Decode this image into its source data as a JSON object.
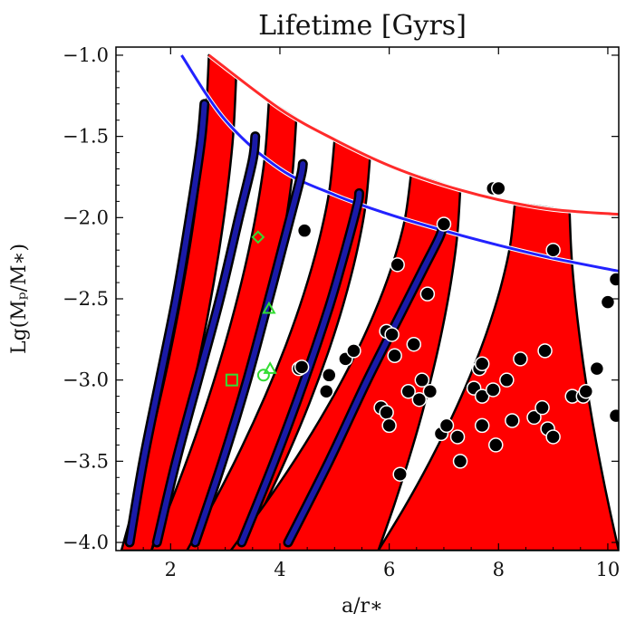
{
  "chart_data": {
    "type": "scatter",
    "title": "Lifetime [Gyrs]",
    "xlabel": "a/r∗",
    "ylabel": "Lg(Mₚ/M∗)",
    "xlim": [
      1.0,
      10.2
    ],
    "ylim": [
      -4.05,
      -0.95
    ],
    "xticks": [
      2,
      4,
      6,
      8,
      10
    ],
    "yticks": [
      -1.0,
      -1.5,
      -2.0,
      -2.5,
      -3.0,
      -3.5,
      -4.0
    ],
    "xtick_labels": [
      "2",
      "4",
      "6",
      "8",
      "10"
    ],
    "ytick_labels": [
      "−1.0",
      "−1.5",
      "−2.0",
      "−2.5",
      "−3.0",
      "−3.5",
      "−4.0"
    ],
    "colors": {
      "band_fill": "#ff0000",
      "band_edge": "#000000",
      "roche_limit": "#ff2a2a",
      "tidal_limit": "#2222ff",
      "track": "#1a1aa8",
      "planet": "#000000",
      "marker": "#33dd33"
    },
    "limit_curves": [
      {
        "name": "upper",
        "color": "#ff2a2a",
        "x": [
          2.7,
          4,
          5,
          6,
          7,
          8,
          9,
          10.2
        ],
        "y": [
          -1.0,
          -1.33,
          -1.52,
          -1.68,
          -1.8,
          -1.89,
          -1.95,
          -1.98
        ]
      },
      {
        "name": "lower",
        "color": "#2222ff",
        "x": [
          2.2,
          3,
          4,
          5,
          6,
          7,
          8,
          9,
          10.2
        ],
        "y": [
          -1.0,
          -1.4,
          -1.7,
          -1.86,
          -1.98,
          -2.08,
          -2.17,
          -2.25,
          -2.33
        ]
      }
    ],
    "bands": [
      {
        "top_left_x": 2.7,
        "top_right_x": 3.2,
        "bottom_left_x": 1.1,
        "bottom_right_x": 1.65
      },
      {
        "top_left_x": 3.8,
        "top_right_x": 4.3,
        "bottom_left_x": 1.65,
        "bottom_right_x": 2.4
      },
      {
        "top_left_x": 5.0,
        "top_right_x": 5.65,
        "bottom_left_x": 2.3,
        "bottom_right_x": 3.3
      },
      {
        "top_left_x": 6.4,
        "top_right_x": 7.3,
        "bottom_left_x": 3.1,
        "bottom_right_x": 5.8
      },
      {
        "top_left_x": 8.3,
        "top_right_x": 9.3,
        "bottom_left_x": 5.8,
        "bottom_right_x": 10.2
      }
    ],
    "tracks": [
      {
        "x": [
          1.25,
          1.5,
          1.8,
          2.1,
          2.35,
          2.55,
          2.62
        ],
        "y": [
          -4.0,
          -3.5,
          -3.0,
          -2.5,
          -2.0,
          -1.55,
          -1.3
        ]
      },
      {
        "x": [
          1.75,
          2.1,
          2.5,
          2.9,
          3.25,
          3.5,
          3.55
        ],
        "y": [
          -4.0,
          -3.5,
          -3.0,
          -2.5,
          -2.0,
          -1.65,
          -1.5
        ]
      },
      {
        "x": [
          2.45,
          2.95,
          3.4,
          3.8,
          4.15,
          4.38,
          4.42
        ],
        "y": [
          -4.0,
          -3.5,
          -3.0,
          -2.5,
          -2.05,
          -1.75,
          -1.67
        ]
      },
      {
        "x": [
          3.3,
          3.9,
          4.45,
          4.9,
          5.2,
          5.42,
          5.45
        ],
        "y": [
          -4.0,
          -3.5,
          -3.0,
          -2.55,
          -2.2,
          -1.92,
          -1.85
        ]
      },
      {
        "x": [
          4.15,
          4.9,
          5.6,
          6.2,
          6.65,
          6.92,
          6.98
        ],
        "y": [
          -4.0,
          -3.5,
          -3.0,
          -2.6,
          -2.3,
          -2.12,
          -2.05
        ]
      }
    ],
    "planets": [
      {
        "x": 4.45,
        "y": -2.08
      },
      {
        "x": 4.35,
        "y": -2.93
      },
      {
        "x": 4.4,
        "y": -2.92
      },
      {
        "x": 4.85,
        "y": -3.07
      },
      {
        "x": 4.9,
        "y": -2.97
      },
      {
        "x": 5.2,
        "y": -2.87
      },
      {
        "x": 5.35,
        "y": -2.82
      },
      {
        "x": 5.85,
        "y": -3.17
      },
      {
        "x": 5.95,
        "y": -3.2
      },
      {
        "x": 6.0,
        "y": -3.28
      },
      {
        "x": 5.95,
        "y": -2.7
      },
      {
        "x": 6.05,
        "y": -2.72
      },
      {
        "x": 6.1,
        "y": -2.85
      },
      {
        "x": 6.15,
        "y": -2.29
      },
      {
        "x": 6.2,
        "y": -3.58
      },
      {
        "x": 6.35,
        "y": -3.07
      },
      {
        "x": 6.45,
        "y": -2.78
      },
      {
        "x": 6.55,
        "y": -3.12
      },
      {
        "x": 6.6,
        "y": -3.0
      },
      {
        "x": 6.7,
        "y": -2.47
      },
      {
        "x": 6.75,
        "y": -3.07
      },
      {
        "x": 6.95,
        "y": -3.33
      },
      {
        "x": 7.05,
        "y": -3.28
      },
      {
        "x": 7.0,
        "y": -2.04
      },
      {
        "x": 7.25,
        "y": -3.35
      },
      {
        "x": 7.3,
        "y": -3.5
      },
      {
        "x": 7.55,
        "y": -3.05
      },
      {
        "x": 7.65,
        "y": -2.93
      },
      {
        "x": 7.7,
        "y": -2.9
      },
      {
        "x": 7.7,
        "y": -3.1
      },
      {
        "x": 7.7,
        "y": -3.28
      },
      {
        "x": 7.9,
        "y": -3.06
      },
      {
        "x": 7.95,
        "y": -3.4
      },
      {
        "x": 8.15,
        "y": -3.0
      },
      {
        "x": 8.25,
        "y": -3.25
      },
      {
        "x": 8.4,
        "y": -2.87
      },
      {
        "x": 8.65,
        "y": -3.23
      },
      {
        "x": 8.8,
        "y": -3.17
      },
      {
        "x": 8.85,
        "y": -2.82
      },
      {
        "x": 8.9,
        "y": -3.3
      },
      {
        "x": 9.0,
        "y": -3.35
      },
      {
        "x": 9.0,
        "y": -2.2
      },
      {
        "x": 9.35,
        "y": -3.1
      },
      {
        "x": 9.55,
        "y": -3.1
      },
      {
        "x": 9.6,
        "y": -3.07
      },
      {
        "x": 9.8,
        "y": -2.93
      },
      {
        "x": 10.0,
        "y": -2.52
      },
      {
        "x": 10.15,
        "y": -2.38
      },
      {
        "x": 10.15,
        "y": -3.22
      },
      {
        "x": 10.15,
        "y": -3.22
      },
      {
        "x": 7.9,
        "y": -1.82
      },
      {
        "x": 8.0,
        "y": -1.82
      }
    ],
    "markers": [
      {
        "shape": "diamond",
        "x": 3.6,
        "y": -2.12
      },
      {
        "shape": "triangle",
        "x": 3.8,
        "y": -2.56
      },
      {
        "shape": "square",
        "x": 3.12,
        "y": -3.0
      },
      {
        "shape": "circle",
        "x": 3.7,
        "y": -2.97
      },
      {
        "shape": "triangle",
        "x": 3.82,
        "y": -2.93
      }
    ]
  }
}
